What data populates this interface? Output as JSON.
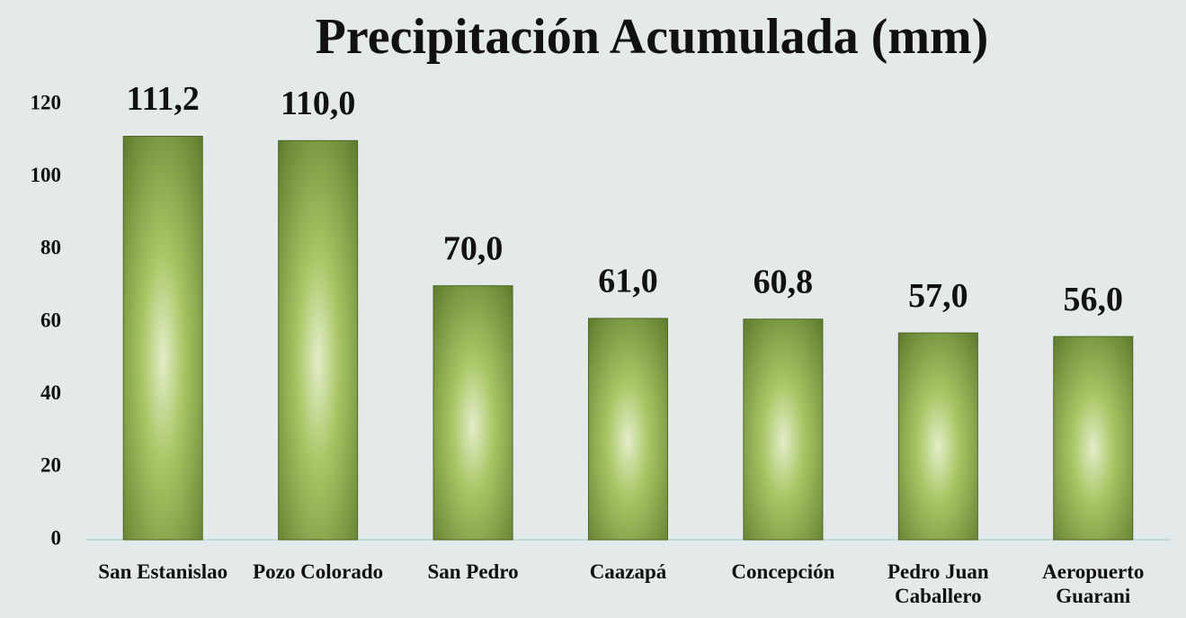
{
  "chart_data": {
    "type": "bar",
    "title": "Precipitación Acumulada (mm)",
    "categories": [
      "San Estanislao",
      "Pozo Colorado",
      "San Pedro",
      "Caazapá",
      "Concepción",
      "Pedro Juan Caballero",
      "Aeropuerto Guarani"
    ],
    "values": [
      111.2,
      110.0,
      70.0,
      61.0,
      60.8,
      57.0,
      56.0
    ],
    "value_labels": [
      "111,2",
      "110,0",
      "70,0",
      "61,0",
      "60,8",
      "57,0",
      "56,0"
    ],
    "color": "#7a9a3a",
    "ylim": [
      0,
      120
    ],
    "yticks": [
      0,
      20,
      40,
      60,
      80,
      100,
      120
    ],
    "grid": false
  }
}
